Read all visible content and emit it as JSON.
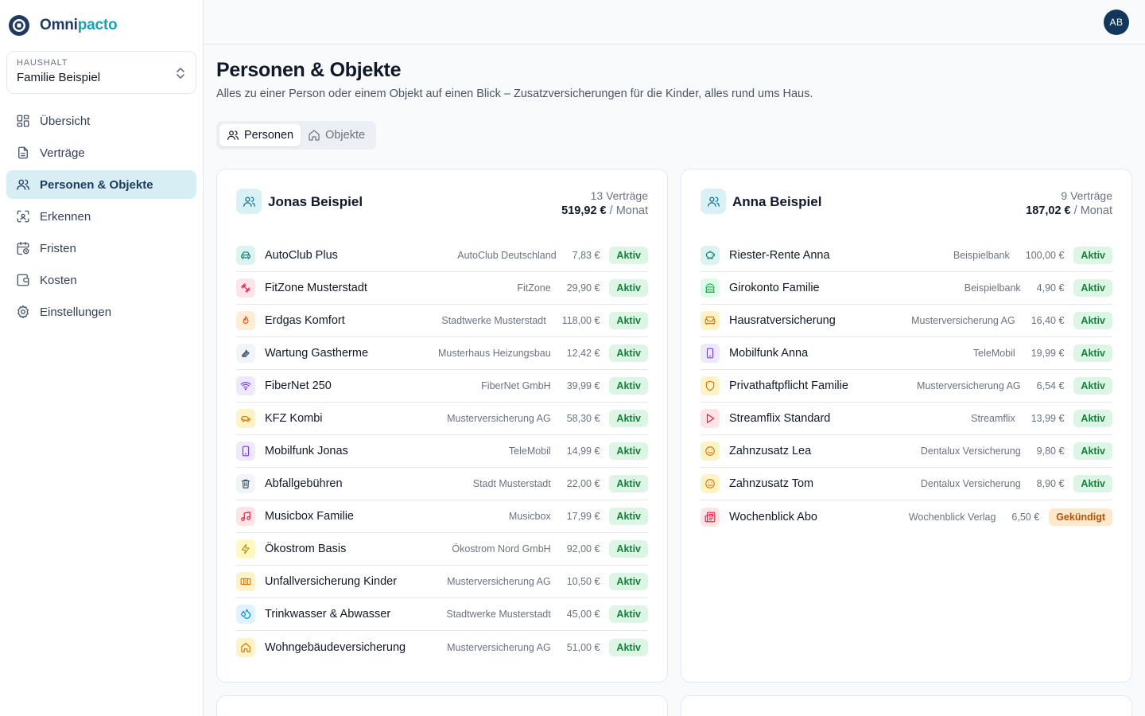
{
  "brand": {
    "name_a": "Omni",
    "name_b": "pacto"
  },
  "household": {
    "label": "HAUSHALT",
    "value": "Familie Beispiel"
  },
  "nav": [
    {
      "label": "Übersicht",
      "icon": "grid-icon",
      "active": false
    },
    {
      "label": "Verträge",
      "icon": "document-icon",
      "active": false
    },
    {
      "label": "Personen & Objekte",
      "icon": "users-icon",
      "active": true
    },
    {
      "label": "Erkennen",
      "icon": "scan-icon",
      "active": false
    },
    {
      "label": "Fristen",
      "icon": "calendar-clock-icon",
      "active": false
    },
    {
      "label": "Kosten",
      "icon": "wallet-icon",
      "active": false
    },
    {
      "label": "Einstellungen",
      "icon": "gear-icon",
      "active": false
    }
  ],
  "user": {
    "initials": "AB"
  },
  "page": {
    "title": "Personen & Objekte",
    "subtitle": "Alles zu einer Person oder einem Objekt auf einen Blick – Zusatzversicherungen für die Kinder, alles rund ums Haus."
  },
  "tabs": [
    {
      "label": "Personen",
      "icon": "users-icon",
      "active": true
    },
    {
      "label": "Objekte",
      "icon": "home-icon",
      "active": false
    }
  ],
  "persons": [
    {
      "name": "Jonas Beispiel",
      "count": "13 Verträge",
      "total": "519,92 €",
      "per": "/ Monat",
      "contracts": [
        {
          "name": "AutoClub Plus",
          "provider": "AutoClub Deutschland",
          "price": "7,83 €",
          "status": "Aktiv",
          "icon": "car-icon",
          "color": "teal"
        },
        {
          "name": "FitZone Musterstadt",
          "provider": "FitZone",
          "price": "29,90 €",
          "status": "Aktiv",
          "icon": "dumbbell-icon",
          "color": "pink"
        },
        {
          "name": "Erdgas Komfort",
          "provider": "Stadtwerke Musterstadt",
          "price": "118,00 €",
          "status": "Aktiv",
          "icon": "flame-icon",
          "color": "orange"
        },
        {
          "name": "Wartung Gastherme",
          "provider": "Musterhaus Heizungsbau",
          "price": "12,42 €",
          "status": "Aktiv",
          "icon": "wrench-icon",
          "color": "gray"
        },
        {
          "name": "FiberNet 250",
          "provider": "FiberNet GmbH",
          "price": "39,99 €",
          "status": "Aktiv",
          "icon": "wifi-icon",
          "color": "purple"
        },
        {
          "name": "KFZ Kombi",
          "provider": "Musterversicherung AG",
          "price": "58,30 €",
          "status": "Aktiv",
          "icon": "car-side-icon",
          "color": "amber"
        },
        {
          "name": "Mobilfunk Jonas",
          "provider": "TeleMobil",
          "price": "14,99 €",
          "status": "Aktiv",
          "icon": "smartphone-icon",
          "color": "purple"
        },
        {
          "name": "Abfallgebühren",
          "provider": "Stadt Musterstadt",
          "price": "22,00 €",
          "status": "Aktiv",
          "icon": "trash-icon",
          "color": "gray"
        },
        {
          "name": "Musicbox Familie",
          "provider": "Musicbox",
          "price": "17,99 €",
          "status": "Aktiv",
          "icon": "music-icon",
          "color": "rose"
        },
        {
          "name": "Ökostrom Basis",
          "provider": "Ökostrom Nord GmbH",
          "price": "92,00 €",
          "status": "Aktiv",
          "icon": "bolt-icon",
          "color": "yellow"
        },
        {
          "name": "Unfallversicherung Kinder",
          "provider": "Musterversicherung AG",
          "price": "10,50 €",
          "status": "Aktiv",
          "icon": "bandage-icon",
          "color": "amber"
        },
        {
          "name": "Trinkwasser & Abwasser",
          "provider": "Stadtwerke Musterstadt",
          "price": "45,00 €",
          "status": "Aktiv",
          "icon": "droplets-icon",
          "color": "blue"
        },
        {
          "name": "Wohngebäudeversicherung",
          "provider": "Musterversicherung AG",
          "price": "51,00 €",
          "status": "Aktiv",
          "icon": "home-icon",
          "color": "amber"
        }
      ]
    },
    {
      "name": "Anna Beispiel",
      "count": "9 Verträge",
      "total": "187,02 €",
      "per": "/ Monat",
      "contracts": [
        {
          "name": "Riester-Rente Anna",
          "provider": "Beispielbank",
          "price": "100,00 €",
          "status": "Aktiv",
          "icon": "piggy-bank-icon",
          "color": "teal"
        },
        {
          "name": "Girokonto Familie",
          "provider": "Beispielbank",
          "price": "4,90 €",
          "status": "Aktiv",
          "icon": "bank-icon",
          "color": "green"
        },
        {
          "name": "Hausratversicherung",
          "provider": "Musterversicherung AG",
          "price": "16,40 €",
          "status": "Aktiv",
          "icon": "sofa-icon",
          "color": "amber"
        },
        {
          "name": "Mobilfunk Anna",
          "provider": "TeleMobil",
          "price": "19,99 €",
          "status": "Aktiv",
          "icon": "smartphone-icon",
          "color": "purple"
        },
        {
          "name": "Privathaftpflicht Familie",
          "provider": "Musterversicherung AG",
          "price": "6,54 €",
          "status": "Aktiv",
          "icon": "shield-icon",
          "color": "amber"
        },
        {
          "name": "Streamflix Standard",
          "provider": "Streamflix",
          "price": "13,99 €",
          "status": "Aktiv",
          "icon": "play-icon",
          "color": "rose"
        },
        {
          "name": "Zahnzusatz Lea",
          "provider": "Dentalux Versicherung",
          "price": "9,80 €",
          "status": "Aktiv",
          "icon": "smile-icon",
          "color": "amber"
        },
        {
          "name": "Zahnzusatz Tom",
          "provider": "Dentalux Versicherung",
          "price": "8,90 €",
          "status": "Aktiv",
          "icon": "smile-icon",
          "color": "amber"
        },
        {
          "name": "Wochenblick Abo",
          "provider": "Wochenblick Verlag",
          "price": "6,50 €",
          "status": "Gekündigt",
          "icon": "newspaper-icon",
          "color": "rose"
        }
      ]
    }
  ]
}
